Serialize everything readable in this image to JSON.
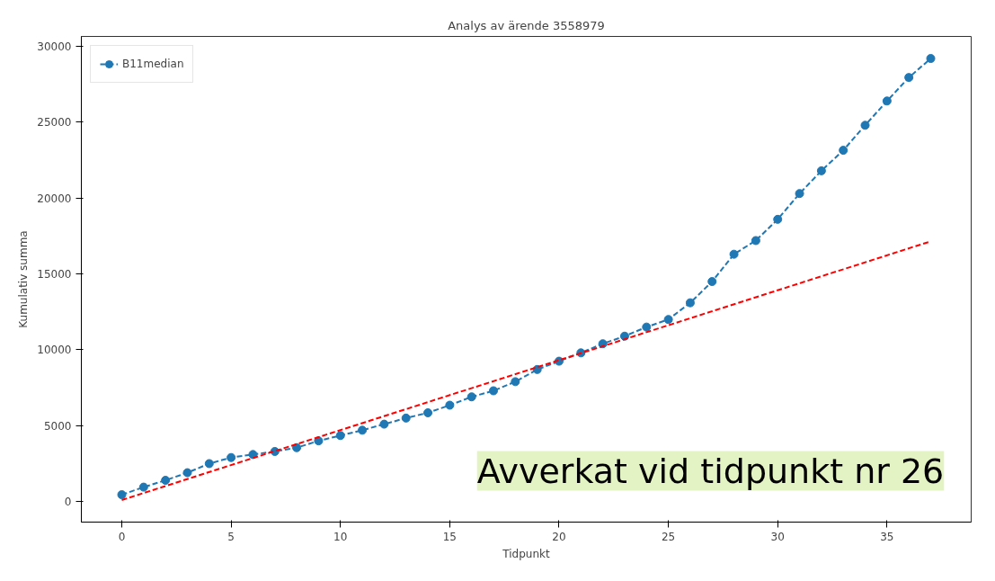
{
  "chart_data": {
    "type": "line",
    "title": "Analys av ärende 3558979",
    "xlabel": "Tidpunkt",
    "ylabel": "Kumulativ summa",
    "x": [
      0,
      1,
      2,
      3,
      4,
      5,
      6,
      7,
      8,
      9,
      10,
      11,
      12,
      13,
      14,
      15,
      16,
      17,
      18,
      19,
      20,
      21,
      22,
      23,
      24,
      25,
      26,
      27,
      28,
      29,
      30,
      31,
      32,
      33,
      34,
      35,
      36,
      37
    ],
    "series": [
      {
        "name": "B11median",
        "color": "#1f77b4",
        "marker": "circle",
        "line_style": "dashed",
        "values": [
          450,
          950,
          1400,
          1900,
          2500,
          2900,
          3100,
          3300,
          3550,
          4000,
          4350,
          4700,
          5100,
          5500,
          5850,
          6350,
          6900,
          7300,
          7900,
          8700,
          9250,
          9800,
          10400,
          10900,
          11500,
          12000,
          13100,
          14500,
          16300,
          17200,
          18600,
          20300,
          21800,
          23150,
          24800,
          26400,
          27950,
          29200
        ]
      },
      {
        "type": "line",
        "color": "#ff0000",
        "marker": "none",
        "line_style": "dashed",
        "x": [
          0,
          37
        ],
        "values": [
          100,
          17150
        ]
      }
    ],
    "xlim": [
      -1.85,
      38.85
    ],
    "ylim": [
      -1355,
      30655
    ],
    "xticks": [
      0,
      5,
      10,
      15,
      20,
      25,
      30,
      35
    ],
    "yticks": [
      0,
      5000,
      10000,
      15000,
      20000,
      25000,
      30000
    ],
    "grid": false,
    "legend": "top left",
    "annotations": [
      "Avverkat vid tidpunkt nr 26"
    ]
  }
}
